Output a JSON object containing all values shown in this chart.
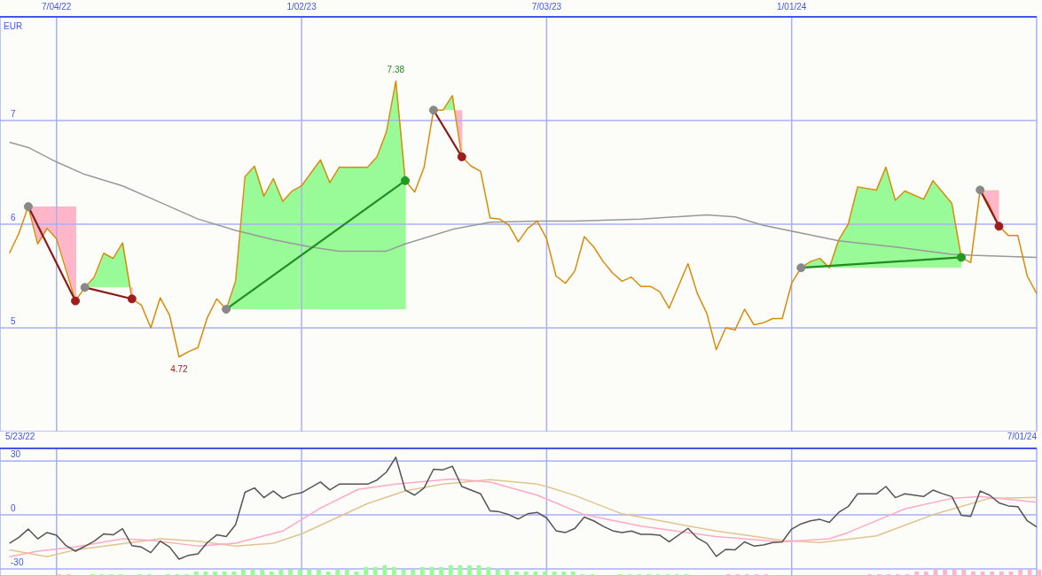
{
  "chart_data": [
    {
      "type": "line",
      "ylabel": "EUR",
      "xlim": [
        "2022-05-23",
        "2024-07-01"
      ],
      "ylim": [
        4,
        8
      ],
      "yticks": [
        5,
        6,
        7
      ],
      "grid": true,
      "xticks": [
        {
          "value": "2022-07-04",
          "label": "7/04/22"
        },
        {
          "value": "2023-01-02",
          "label": "1/02/23"
        },
        {
          "value": "2023-07-03",
          "label": "7/03/23"
        },
        {
          "value": "2024-01-01",
          "label": "1/01/24"
        }
      ],
      "annotations": [
        {
          "text": "7.38",
          "x": "2023-03-13",
          "y": 7.38
        },
        {
          "text": "4.72",
          "x": "2022-10-03",
          "y": 4.72
        }
      ],
      "series": [
        {
          "color": "#999999",
          "marker": "none",
          "x": [
            "2022-05-30",
            "2022-06-13",
            "2022-07-04",
            "2022-07-25",
            "2022-08-22",
            "2022-09-19",
            "2022-10-17",
            "2022-11-14",
            "2022-12-12",
            "2023-01-09",
            "2023-01-30",
            "2023-03-06",
            "2023-03-20",
            "2023-04-24",
            "2023-05-22",
            "2023-06-26",
            "2023-07-24",
            "2023-09-11",
            "2023-10-30",
            "2023-11-20",
            "2023-12-11",
            "2024-02-05",
            "2024-03-18",
            "2024-04-29",
            "2024-05-13",
            "2024-07-01"
          ],
          "values": [
            6.79,
            6.74,
            6.6,
            6.48,
            6.37,
            6.21,
            6.05,
            5.94,
            5.85,
            5.78,
            5.74,
            5.74,
            5.81,
            5.95,
            6.02,
            6.03,
            6.03,
            6.05,
            6.09,
            6.07,
            5.99,
            5.84,
            5.78,
            5.71,
            5.7,
            5.68
          ]
        },
        {
          "color": "#d98c0a",
          "marker": "none",
          "x": [
            "2022-05-30",
            "2022-06-06",
            "2022-06-13",
            "2022-06-20",
            "2022-06-27",
            "2022-07-04",
            "2022-07-18",
            "2022-07-25",
            "2022-08-01",
            "2022-08-08",
            "2022-08-15",
            "2022-08-22",
            "2022-08-29",
            "2022-09-05",
            "2022-09-12",
            "2022-09-19",
            "2022-09-26",
            "2022-10-03",
            "2022-10-10",
            "2022-10-17",
            "2022-10-24",
            "2022-10-31",
            "2022-11-07",
            "2022-11-14",
            "2022-11-21",
            "2022-11-28",
            "2022-12-05",
            "2022-12-12",
            "2022-12-19",
            "2022-12-26",
            "2023-01-02",
            "2023-01-16",
            "2023-01-23",
            "2023-01-30",
            "2023-02-20",
            "2023-02-27",
            "2023-03-06",
            "2023-03-13",
            "2023-03-20",
            "2023-03-27",
            "2023-04-03",
            "2023-04-10",
            "2023-04-17",
            "2023-04-24",
            "2023-05-01",
            "2023-05-08",
            "2023-05-15",
            "2023-05-22",
            "2023-05-29",
            "2023-06-05",
            "2023-06-12",
            "2023-06-19",
            "2023-06-26",
            "2023-07-03",
            "2023-07-10",
            "2023-07-17",
            "2023-07-24",
            "2023-07-31",
            "2023-08-07",
            "2023-08-14",
            "2023-08-21",
            "2023-08-28",
            "2023-09-04",
            "2023-09-11",
            "2023-09-18",
            "2023-09-25",
            "2023-10-02",
            "2023-10-16",
            "2023-10-23",
            "2023-10-30",
            "2023-11-06",
            "2023-11-13",
            "2023-11-20",
            "2023-11-27",
            "2023-12-04",
            "2023-12-11",
            "2023-12-18",
            "2023-12-25",
            "2024-01-01",
            "2024-01-08",
            "2024-01-15",
            "2024-01-22",
            "2024-01-29",
            "2024-02-05",
            "2024-02-12",
            "2024-02-19",
            "2024-03-04",
            "2024-03-11",
            "2024-03-18",
            "2024-03-25",
            "2024-04-08",
            "2024-04-15",
            "2024-04-22",
            "2024-04-29",
            "2024-05-06",
            "2024-05-13",
            "2024-05-20",
            "2024-05-27",
            "2024-06-03",
            "2024-06-10",
            "2024-06-17",
            "2024-06-24",
            "2024-07-01"
          ],
          "values": [
            5.72,
            5.91,
            6.17,
            5.81,
            5.96,
            5.86,
            5.26,
            5.39,
            5.49,
            5.72,
            5.67,
            5.82,
            5.28,
            5.22,
            5.0,
            5.29,
            5.12,
            4.72,
            4.77,
            4.81,
            5.1,
            5.28,
            5.18,
            5.45,
            6.46,
            6.56,
            6.27,
            6.44,
            6.22,
            6.32,
            6.37,
            6.62,
            6.4,
            6.55,
            6.55,
            6.65,
            6.89,
            7.38,
            6.42,
            6.31,
            6.55,
            7.1,
            7.1,
            7.24,
            6.65,
            6.56,
            6.51,
            6.06,
            6.05,
            5.99,
            5.83,
            5.96,
            6.03,
            5.86,
            5.5,
            5.43,
            5.55,
            5.88,
            5.78,
            5.64,
            5.53,
            5.45,
            5.49,
            5.4,
            5.4,
            5.35,
            5.19,
            5.62,
            5.33,
            5.14,
            4.79,
            5.0,
            4.98,
            5.18,
            5.03,
            5.05,
            5.09,
            5.09,
            5.43,
            5.58,
            5.64,
            5.67,
            5.58,
            5.85,
            6.0,
            6.36,
            6.33,
            6.55,
            6.23,
            6.32,
            6.24,
            6.42,
            6.31,
            6.2,
            5.68,
            5.63,
            6.33,
            6.18,
            5.98,
            5.89,
            5.89,
            5.5,
            5.33
          ]
        },
        {
          "type": "line",
          "color": "#8b1a1a",
          "marker": "circle",
          "colors": [
            "#888888",
            "#a01c1c"
          ],
          "x": [
            "2022-06-13",
            "2022-07-18"
          ],
          "values": [
            6.17,
            5.26
          ]
        },
        {
          "type": "line",
          "color": "#8b1a1a",
          "marker": "circle",
          "colors": [
            "#888888",
            "#a01c1c"
          ],
          "x": [
            "2022-07-25",
            "2022-08-29"
          ],
          "values": [
            5.39,
            5.28
          ]
        },
        {
          "type": "line",
          "color": "#228b22",
          "marker": "circle",
          "colors": [
            "#888888",
            "#229922"
          ],
          "x": [
            "2022-11-07",
            "2023-03-20"
          ],
          "values": [
            5.18,
            6.42
          ]
        },
        {
          "type": "line",
          "color": "#8b1a1a",
          "marker": "circle",
          "colors": [
            "#888888",
            "#a01c1c"
          ],
          "x": [
            "2023-04-10",
            "2023-05-01"
          ],
          "values": [
            7.1,
            6.65
          ]
        },
        {
          "type": "line",
          "color": "#228b22",
          "marker": "circle",
          "colors": [
            "#888888",
            "#229922"
          ],
          "x": [
            "2024-01-08",
            "2024-05-06"
          ],
          "values": [
            5.58,
            5.68
          ]
        },
        {
          "type": "line",
          "color": "#8b1a1a",
          "marker": "circle",
          "colors": [
            "#888888",
            "#a01c1c"
          ],
          "x": [
            "2024-05-20",
            "2024-06-03"
          ],
          "values": [
            6.33,
            5.98
          ]
        }
      ]
    },
    {
      "type": "line",
      "xlim": [
        "2022-05-23",
        "2024-07-01"
      ],
      "ylim": [
        -34,
        37
      ],
      "yticks": [
        -30,
        0,
        30
      ],
      "grid": true,
      "tick_labels": "y",
      "xticks": [
        {
          "value": "2022-07-04",
          "label": null
        },
        {
          "value": "2023-01-02",
          "label": null
        },
        {
          "value": "2023-07-03",
          "label": null
        },
        {
          "value": "2024-01-01",
          "label": null
        }
      ],
      "annotations": [
        "5/23/22",
        "7/01/24"
      ],
      "series": [
        {
          "type": "bar",
          "color": "#98fb98",
          "x": [
            "2022-08-01",
            "2022-08-08",
            "2022-08-15",
            "2022-08-22",
            "2022-09-05",
            "2022-09-12",
            "2022-09-26",
            "2022-10-03",
            "2022-10-10",
            "2022-10-17",
            "2022-10-24",
            "2022-10-31",
            "2022-11-07",
            "2022-11-14",
            "2022-11-21",
            "2022-11-28",
            "2022-12-05",
            "2022-12-12",
            "2022-12-19",
            "2022-12-26",
            "2023-01-02",
            "2023-01-09",
            "2023-01-16",
            "2023-01-23",
            "2023-01-30",
            "2023-02-06",
            "2023-02-13",
            "2023-02-20",
            "2023-02-27",
            "2023-03-06",
            "2023-03-13",
            "2023-03-20",
            "2023-03-27",
            "2023-04-03",
            "2023-04-10",
            "2023-04-17",
            "2023-04-24",
            "2023-05-01",
            "2023-05-08",
            "2023-05-15",
            "2023-05-22",
            "2023-05-29",
            "2023-06-05",
            "2023-06-12",
            "2023-06-19",
            "2023-06-26",
            "2023-07-03",
            "2023-07-10",
            "2023-07-17",
            "2023-07-24",
            "2023-07-31",
            "2023-08-07",
            "2023-08-28",
            "2023-09-04",
            "2023-09-11",
            "2023-09-18",
            "2023-09-25",
            "2023-10-02",
            "2023-10-09",
            "2023-10-16"
          ],
          "values": [
            1,
            1,
            1,
            1,
            1,
            1,
            1,
            1,
            1,
            2.5,
            2.5,
            2.5,
            2.5,
            2.5,
            3.5,
            3.5,
            3.5,
            2.5,
            3.5,
            3.5,
            3.5,
            3.5,
            3.5,
            2.5,
            3.5,
            3.5,
            2.5,
            5,
            5,
            6,
            5,
            3.5,
            3.5,
            5,
            5,
            5,
            6,
            6,
            6,
            6,
            5,
            3.5,
            3.5,
            2.5,
            2.5,
            2.5,
            2.5,
            2.5,
            2.5,
            2.5,
            1,
            1,
            1,
            1,
            1,
            1,
            1,
            1,
            1,
            1
          ],
          "base": [
            -34,
            -34,
            -34,
            -34,
            -34,
            -34,
            -34,
            -34,
            -34,
            -34,
            -34,
            -34,
            -34,
            -34,
            -34,
            -34,
            -34,
            -34,
            -34,
            -34,
            -34,
            -34,
            -34,
            -34,
            -34,
            -34,
            -34,
            -34,
            -34,
            -34,
            -34,
            -34,
            -34,
            -34,
            -34,
            -34,
            -34,
            -34,
            -34,
            -34,
            -34,
            -34,
            -34,
            -34,
            -34,
            -34,
            -34,
            -34,
            -34,
            -34,
            -34,
            -34,
            -34,
            -34,
            -34,
            -34,
            -34,
            -34,
            -34,
            -34
          ]
        },
        {
          "type": "bar",
          "color": "#ffb6c8",
          "x": [
            "2022-07-04",
            "2022-07-11",
            "2023-11-13",
            "2023-11-20",
            "2023-11-27",
            "2023-12-04",
            "2023-12-11",
            "2024-02-26",
            "2024-03-04",
            "2024-03-11",
            "2024-03-18",
            "2024-03-25",
            "2024-04-01",
            "2024-04-08",
            "2024-04-15",
            "2024-04-22",
            "2024-04-29",
            "2024-05-06",
            "2024-05-13",
            "2024-05-20",
            "2024-05-27",
            "2024-06-03",
            "2024-06-10",
            "2024-06-17",
            "2024-06-24",
            "2024-07-01"
          ],
          "values": [
            1,
            1,
            1,
            1,
            1,
            1,
            1,
            1,
            1,
            1,
            1,
            1,
            2.5,
            2.5,
            3.5,
            3.5,
            3.5,
            3.5,
            2.5,
            2.5,
            2.5,
            2.5,
            2.5,
            3.5,
            3.5,
            3.5
          ],
          "base": [
            -34,
            -34,
            -34,
            -34,
            -34,
            -34,
            -34,
            -34,
            -34,
            -34,
            -34,
            -34,
            -34,
            -34,
            -34,
            -34,
            -34,
            -34,
            -34,
            -34,
            -34,
            -34,
            -34,
            -34,
            -34,
            -34
          ]
        },
        {
          "color": "#e0c490",
          "marker": "none",
          "x": [
            "2022-05-30",
            "2022-06-27",
            "2022-07-18",
            "2022-09-19",
            "2022-10-17",
            "2022-11-14",
            "2022-12-12",
            "2023-01-02",
            "2023-02-20",
            "2023-03-20",
            "2023-04-17",
            "2023-05-22",
            "2023-06-26",
            "2023-07-03",
            "2023-07-24",
            "2023-08-28",
            "2023-11-06",
            "2023-12-25",
            "2024-01-22",
            "2024-03-04",
            "2024-04-15",
            "2024-05-27",
            "2024-07-01"
          ],
          "values": [
            -19.4,
            -23.3,
            -19.4,
            -13.3,
            -14.6,
            -17.3,
            -15.8,
            -10.6,
            6.3,
            13.3,
            17.1,
            19.6,
            17.1,
            15.8,
            10.8,
            0.6,
            -9.0,
            -14.2,
            -15.4,
            -11.7,
            0.1,
            9.2,
            9.8
          ]
        },
        {
          "color": "#ffa8c8",
          "marker": "none",
          "x": [
            "2022-05-30",
            "2022-06-20",
            "2022-07-18",
            "2022-08-22",
            "2022-09-12",
            "2022-10-17",
            "2022-11-14",
            "2022-12-19",
            "2023-01-16",
            "2023-02-13",
            "2023-03-13",
            "2023-04-24",
            "2023-05-22",
            "2023-06-26",
            "2023-07-31",
            "2023-09-11",
            "2023-11-06",
            "2023-12-25",
            "2024-01-29",
            "2024-02-12",
            "2024-03-25",
            "2024-04-29",
            "2024-05-20",
            "2024-07-01"
          ],
          "values": [
            -23.3,
            -20.2,
            -17.9,
            -13.3,
            -14.2,
            -17.3,
            -15.8,
            -9.0,
            3.8,
            14.2,
            17.1,
            20.0,
            18.3,
            11.0,
            0.1,
            -6.3,
            -12.1,
            -15.0,
            -13.3,
            -9.8,
            3.3,
            9.2,
            10.2,
            7.1
          ]
        },
        {
          "color": "#555555",
          "marker": "none",
          "x": [
            "2022-05-30",
            "2022-06-06",
            "2022-06-13",
            "2022-06-20",
            "2022-06-27",
            "2022-07-04",
            "2022-07-11",
            "2022-07-18",
            "2022-07-25",
            "2022-08-01",
            "2022-08-08",
            "2022-08-15",
            "2022-08-22",
            "2022-08-29",
            "2022-09-05",
            "2022-09-12",
            "2022-09-19",
            "2022-09-26",
            "2022-10-03",
            "2022-10-10",
            "2022-10-17",
            "2022-10-24",
            "2022-10-31",
            "2022-11-07",
            "2022-11-14",
            "2022-11-21",
            "2022-11-28",
            "2022-12-05",
            "2022-12-12",
            "2022-12-19",
            "2022-12-26",
            "2023-01-02",
            "2023-01-16",
            "2023-01-23",
            "2023-01-30",
            "2023-02-20",
            "2023-02-27",
            "2023-03-06",
            "2023-03-13",
            "2023-03-20",
            "2023-03-27",
            "2023-04-03",
            "2023-04-10",
            "2023-04-17",
            "2023-04-24",
            "2023-05-01",
            "2023-05-15",
            "2023-05-22",
            "2023-05-29",
            "2023-06-05",
            "2023-06-12",
            "2023-06-19",
            "2023-06-26",
            "2023-07-03",
            "2023-07-10",
            "2023-07-17",
            "2023-07-24",
            "2023-07-31",
            "2023-08-07",
            "2023-08-14",
            "2023-08-21",
            "2023-08-28",
            "2023-09-04",
            "2023-09-11",
            "2023-09-18",
            "2023-09-25",
            "2023-10-02",
            "2023-10-16",
            "2023-10-23",
            "2023-10-30",
            "2023-11-06",
            "2023-11-13",
            "2023-11-20",
            "2023-11-27",
            "2023-12-04",
            "2023-12-11",
            "2023-12-18",
            "2023-12-25",
            "2024-01-01",
            "2024-01-08",
            "2024-01-15",
            "2024-01-22",
            "2024-01-29",
            "2024-02-05",
            "2024-02-12",
            "2024-02-19",
            "2024-03-04",
            "2024-03-11",
            "2024-03-18",
            "2024-03-25",
            "2024-04-08",
            "2024-04-15",
            "2024-04-22",
            "2024-04-29",
            "2024-05-06",
            "2024-05-13",
            "2024-05-20",
            "2024-05-27",
            "2024-06-03",
            "2024-06-10",
            "2024-06-17",
            "2024-06-24",
            "2024-07-01"
          ],
          "values": [
            -15.8,
            -12.5,
            -7.9,
            -13.3,
            -9.8,
            -11.3,
            -17.1,
            -20.2,
            -17.5,
            -14.6,
            -10.6,
            -11.1,
            -7.7,
            -17.1,
            -17.9,
            -21.0,
            -14.6,
            -17.9,
            -24.6,
            -22.5,
            -21.7,
            -15.4,
            -11.1,
            -12.1,
            -5.4,
            12.6,
            15.0,
            9.6,
            13.3,
            9.2,
            11.3,
            12.3,
            18.3,
            13.9,
            17.1,
            17.1,
            19.4,
            23.8,
            32.1,
            13.8,
            11.0,
            15.0,
            25.4,
            25.1,
            27.1,
            15.8,
            11.7,
            2.2,
            1.7,
            0.1,
            -2.3,
            0.6,
            1.4,
            -1.7,
            -8.8,
            -9.8,
            -7.5,
            -1.2,
            -3.3,
            -6.3,
            -8.8,
            -9.8,
            -9.0,
            -10.8,
            -10.8,
            -11.3,
            -15.0,
            -7.5,
            -12.9,
            -15.8,
            -23.1,
            -19.2,
            -19.4,
            -15.0,
            -17.3,
            -16.7,
            -15.4,
            -15.0,
            -7.9,
            -5.0,
            -3.3,
            -2.5,
            -4.2,
            1.4,
            4.6,
            11.7,
            11.7,
            15.8,
            9.6,
            11.7,
            10.2,
            13.8,
            11.8,
            10.2,
            -0.2,
            -0.8,
            13.3,
            11.0,
            6.7,
            5.0,
            4.6,
            -3.3,
            -6.7
          ]
        }
      ]
    }
  ]
}
